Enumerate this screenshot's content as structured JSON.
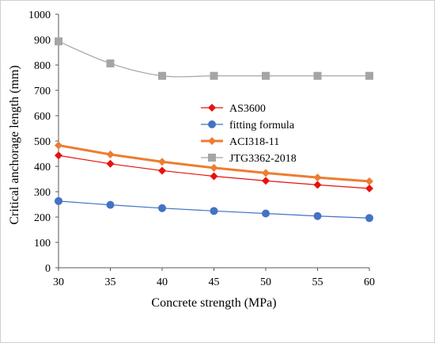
{
  "chart_data": {
    "type": "line",
    "x": [
      30,
      35,
      40,
      45,
      50,
      55,
      60
    ],
    "xlabel": "Concrete strength (MPa)",
    "ylabel": "Critical anchorage length (mm)",
    "xlim": [
      30,
      60
    ],
    "ylim": [
      0,
      1000
    ],
    "xticks": [
      "30",
      "35",
      "40",
      "45",
      "50",
      "55",
      "60"
    ],
    "yticks": [
      "0",
      "100",
      "200",
      "300",
      "400",
      "500",
      "600",
      "700",
      "800",
      "900",
      "1000"
    ],
    "grid": false,
    "legend_position": "center-right",
    "series": [
      {
        "name": "AS3600",
        "values": [
          443,
          410,
          383,
          361,
          343,
          327,
          313
        ],
        "color": "#e8110f",
        "marker": "diamond",
        "smooth": false
      },
      {
        "name": "fitting formula",
        "values": [
          263,
          248,
          235,
          224,
          214,
          204,
          196
        ],
        "color": "#4472c4",
        "marker": "circle",
        "smooth": false
      },
      {
        "name": "ACI318-11",
        "values": [
          483,
          447,
          418,
          394,
          374,
          356,
          341
        ],
        "color": "#ed7d31",
        "marker": "diamond",
        "smooth": false
      },
      {
        "name": "JTG3362-2018",
        "values": [
          893,
          806,
          757,
          757,
          757,
          757,
          757
        ],
        "color": "#a5a5a5",
        "marker": "square",
        "smooth": true
      }
    ]
  }
}
